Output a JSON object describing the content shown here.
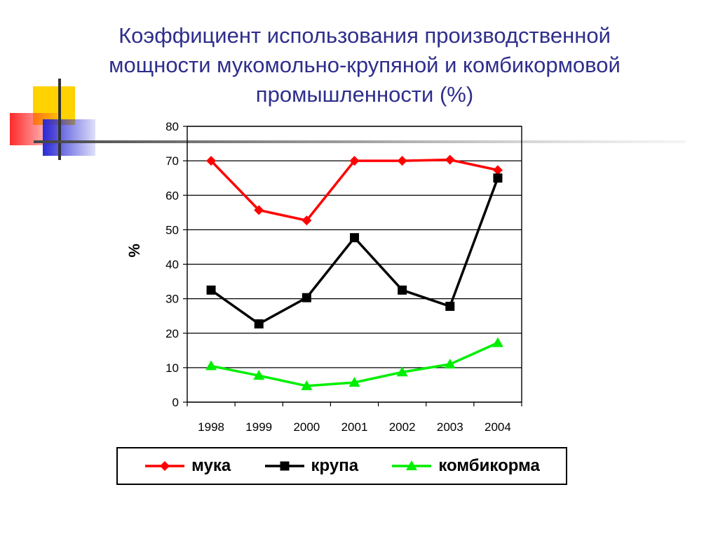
{
  "title_lines": [
    "Коэффициент использования производственной",
    "мощности мукомольно-крупяной и комбикормовой",
    "промышленности (%)"
  ],
  "colors": {
    "title": "#2e2e8c",
    "logo_yellow": "#ffd200",
    "logo_red": "#ff2a2a",
    "logo_blue": "#2a2ad6"
  },
  "chart_data": {
    "type": "line",
    "title": "Коэффициент использования производственной мощности мукомольно-крупяной и комбикормовой промышленности (%)",
    "xlabel": "",
    "ylabel": "%",
    "categories": [
      "1998",
      "1999",
      "2000",
      "2001",
      "2002",
      "2003",
      "2004"
    ],
    "ylim": [
      0,
      80
    ],
    "yticks": [
      "0",
      "10",
      "20",
      "30",
      "40",
      "50",
      "60",
      "70",
      "80"
    ],
    "grid": true,
    "legend_position": "bottom",
    "series": [
      {
        "name": "мука",
        "color": "#ff0000",
        "marker": "diamond",
        "values": [
          70,
          55.7,
          52.7,
          70,
          70,
          70.3,
          67.3
        ]
      },
      {
        "name": "крупа",
        "color": "#000000",
        "marker": "square",
        "values": [
          32.5,
          22.7,
          30.3,
          47.7,
          32.5,
          27.8,
          65
        ]
      },
      {
        "name": "комбикорма",
        "color": "#00ee00",
        "marker": "triangle",
        "values": [
          10.5,
          7.7,
          4.7,
          5.7,
          8.7,
          11,
          17.2
        ]
      }
    ]
  }
}
